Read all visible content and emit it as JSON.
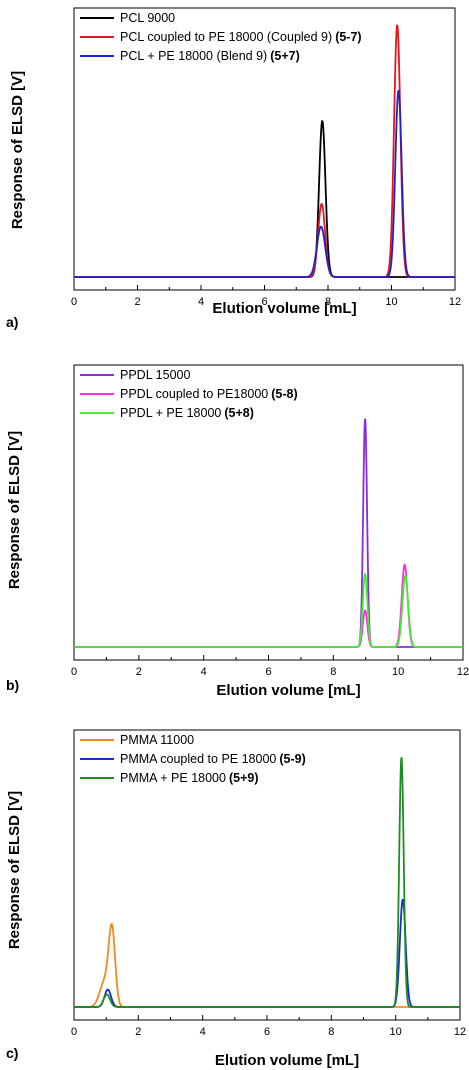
{
  "chart_data": [
    {
      "type": "line",
      "panel_label": "a)",
      "xlabel": "Elution volume [mL]",
      "ylabel": "Response of ELSD [V]",
      "xlim": [
        0,
        12
      ],
      "xticks": [
        "0",
        "2",
        "4",
        "6",
        "8",
        "10",
        "12"
      ],
      "grid": false,
      "legend_position": "top-left",
      "series": [
        {
          "name": "PCL 9000",
          "color": "#000000",
          "baseline": 0.02,
          "peaks": [
            {
              "center": 7.82,
              "height": 0.62,
              "width": 0.1
            }
          ]
        },
        {
          "name": "PCL coupled to PE 18000 (Coupled 9)",
          "tag": "(5-7)",
          "color": "#e8141c",
          "baseline": 0.02,
          "peaks": [
            {
              "center": 7.8,
              "height": 0.29,
              "width": 0.11
            },
            {
              "center": 10.18,
              "height": 1.0,
              "width": 0.1
            }
          ]
        },
        {
          "name": "PCL + PE 18000 (Blend 9)",
          "tag": "(5+7)",
          "color": "#2222cc",
          "baseline": 0.02,
          "peaks": [
            {
              "center": 7.78,
              "height": 0.2,
              "width": 0.13
            },
            {
              "center": 10.22,
              "height": 0.74,
              "width": 0.1
            }
          ]
        }
      ]
    },
    {
      "type": "line",
      "panel_label": "b)",
      "xlabel": "Elution volume [mL]",
      "ylabel": "Response of ELSD [V]",
      "xlim": [
        0,
        12
      ],
      "xticks": [
        "0",
        "2",
        "4",
        "6",
        "8",
        "10",
        "12"
      ],
      "grid": false,
      "legend_position": "top-left",
      "series": [
        {
          "name": "PPDL 15000",
          "color": "#8a2be2",
          "baseline": 0.02,
          "peaks": [
            {
              "center": 8.98,
              "height": 1.0,
              "width": 0.06
            }
          ]
        },
        {
          "name": "PPDL coupled to PE18000",
          "tag": "(5-8)",
          "color": "#ff2ee0",
          "baseline": 0.02,
          "peaks": [
            {
              "center": 8.98,
              "height": 0.16,
              "width": 0.07
            },
            {
              "center": 10.2,
              "height": 0.36,
              "width": 0.09
            }
          ]
        },
        {
          "name": "PPDL + PE 18000",
          "tag": "(5+8)",
          "color": "#44ee33",
          "baseline": 0.02,
          "peaks": [
            {
              "center": 8.98,
              "height": 0.32,
              "width": 0.07
            },
            {
              "center": 10.22,
              "height": 0.31,
              "width": 0.09
            }
          ]
        }
      ]
    },
    {
      "type": "line",
      "panel_label": "c)",
      "xlabel": "Elution volume [mL]",
      "ylabel": "Response of ELSD [V]",
      "xlim": [
        0,
        12
      ],
      "xticks": [
        "0",
        "2",
        "4",
        "6",
        "8",
        "10",
        "12"
      ],
      "grid": false,
      "legend_position": "top-left",
      "series": [
        {
          "name": "PMMA 11000",
          "color": "#f08c1e",
          "baseline": 0.02,
          "peaks": [
            {
              "center": 1.18,
              "height": 0.3,
              "width": 0.1
            },
            {
              "center": 0.95,
              "height": 0.1,
              "width": 0.15
            }
          ]
        },
        {
          "name": "PMMA coupled to PE 18000",
          "tag": "(5-9)",
          "color": "#1a2bd6",
          "baseline": 0.02,
          "peaks": [
            {
              "center": 1.05,
              "height": 0.07,
              "width": 0.1
            },
            {
              "center": 10.22,
              "height": 0.43,
              "width": 0.09
            }
          ]
        },
        {
          "name": "PMMA + PE 18000",
          "tag": "(5+9)",
          "color": "#1e8c1e",
          "baseline": 0.02,
          "peaks": [
            {
              "center": 1.02,
              "height": 0.05,
              "width": 0.1
            },
            {
              "center": 10.18,
              "height": 1.0,
              "width": 0.07
            }
          ]
        }
      ]
    }
  ]
}
